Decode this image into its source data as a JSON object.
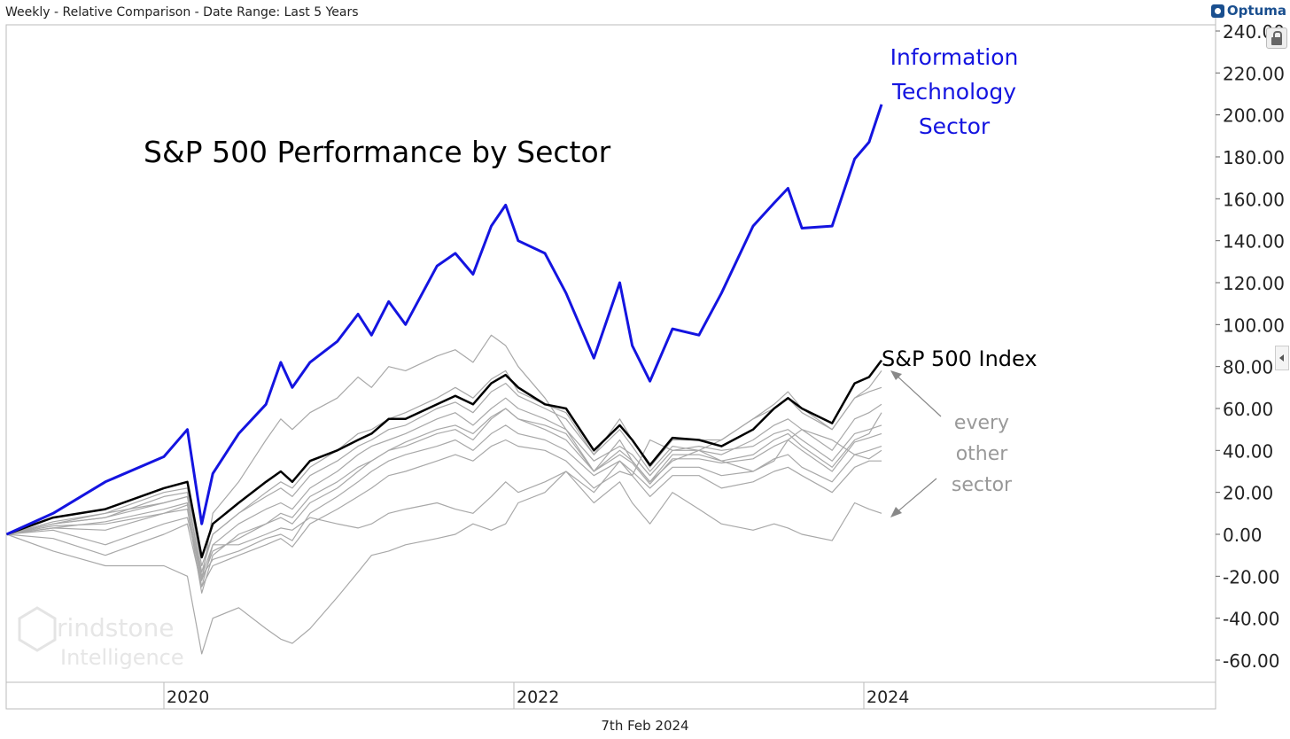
{
  "header": {
    "title": "Weekly - Relative Comparison - Date Range: Last 5 Years",
    "logo": "Optuma"
  },
  "footer": {
    "date": "7th Feb 2024"
  },
  "watermark": "Grindstone Intelligence",
  "icons": {
    "lock": "lock-icon",
    "collapse": "chevron-left-icon"
  },
  "chart_data": {
    "type": "line",
    "title": "S&P 500 Performance by Sector",
    "annotations": {
      "it": [
        "Information",
        "Technology",
        "Sector"
      ],
      "sp": "S&P 500 Index",
      "other": [
        "every",
        "other",
        "sector"
      ]
    },
    "xlabel": "",
    "ylabel": "",
    "x_ticks": [
      "2020",
      "2022",
      "2024"
    ],
    "y_ticks": [
      "240.00",
      "220.00",
      "200.00",
      "180.00",
      "160.00",
      "140.00",
      "120.00",
      "100.00",
      "80.00",
      "60.00",
      "40.00",
      "20.00",
      "0.00",
      "-20.00",
      "-40.00",
      "-60.00"
    ],
    "ylim": [
      -70,
      245
    ],
    "xlim": [
      "2019-02-07",
      "2024-02-07"
    ],
    "grid": false,
    "colors": {
      "it": "#1414e0",
      "sp": "#000000",
      "other": "#a8a8a8"
    },
    "dates": [
      "2019-02-07",
      "2019-05-15",
      "2019-09-01",
      "2020-01-01",
      "2020-02-19",
      "2020-03-20",
      "2020-04-12",
      "2020-06-05",
      "2020-08-01",
      "2020-09-01",
      "2020-09-25",
      "2020-11-01",
      "2020-12-28",
      "2021-02-10",
      "2021-03-10",
      "2021-04-15",
      "2021-05-20",
      "2021-07-25",
      "2021-09-01",
      "2021-10-08",
      "2021-11-15",
      "2021-12-15",
      "2022-01-10",
      "2022-03-07",
      "2022-04-20",
      "2022-06-17",
      "2022-08-10",
      "2022-09-05",
      "2022-10-12",
      "2022-11-28",
      "2023-01-22",
      "2023-03-10",
      "2023-05-15",
      "2023-06-28",
      "2023-07-27",
      "2023-08-25",
      "2023-10-27",
      "2023-12-13",
      "2024-01-12",
      "2024-02-07"
    ],
    "series": [
      {
        "name": "Information Technology Sector",
        "role": "it",
        "values": [
          0,
          10,
          25,
          37,
          50,
          5,
          29,
          48,
          62,
          82,
          70,
          82,
          92,
          105,
          95,
          111,
          100,
          128,
          134,
          124,
          147,
          157,
          140,
          134,
          115,
          84,
          120,
          90,
          73,
          98,
          95,
          115,
          147,
          158,
          165,
          146,
          147,
          179,
          187,
          205
        ]
      },
      {
        "name": "S&P 500 Index",
        "role": "sp",
        "values": [
          0,
          8,
          12,
          22,
          25,
          -11,
          5,
          15,
          25,
          30,
          25,
          35,
          40,
          45,
          48,
          55,
          55,
          62,
          66,
          62,
          72,
          76,
          70,
          62,
          60,
          40,
          52,
          45,
          33,
          46,
          45,
          42,
          50,
          60,
          65,
          60,
          53,
          72,
          75,
          83
        ]
      },
      {
        "role": "other",
        "values": [
          0,
          -8,
          -15,
          -15,
          -20,
          -57,
          -40,
          -35,
          -45,
          -50,
          -52,
          -45,
          -30,
          -18,
          -10,
          -8,
          -5,
          -2,
          0,
          5,
          2,
          5,
          15,
          20,
          30,
          20,
          35,
          28,
          45,
          40,
          40,
          35,
          30,
          35,
          45,
          50,
          45,
          38,
          36,
          40
        ]
      },
      {
        "role": "other",
        "values": [
          0,
          5,
          10,
          15,
          18,
          -20,
          -5,
          -5,
          0,
          3,
          2,
          8,
          5,
          3,
          5,
          10,
          12,
          15,
          12,
          10,
          18,
          25,
          20,
          25,
          30,
          15,
          25,
          15,
          5,
          20,
          12,
          5,
          2,
          5,
          3,
          0,
          -3,
          15,
          12,
          10
        ]
      },
      {
        "role": "other",
        "values": [
          0,
          5,
          8,
          18,
          20,
          -22,
          10,
          25,
          45,
          55,
          50,
          58,
          65,
          75,
          70,
          80,
          78,
          85,
          88,
          82,
          95,
          90,
          80,
          65,
          50,
          30,
          45,
          35,
          25,
          35,
          40,
          45,
          55,
          62,
          68,
          60,
          50,
          65,
          70,
          78
        ]
      },
      {
        "role": "other",
        "values": [
          0,
          6,
          10,
          20,
          22,
          -15,
          0,
          10,
          18,
          22,
          18,
          28,
          35,
          42,
          45,
          50,
          52,
          60,
          63,
          58,
          68,
          72,
          66,
          60,
          55,
          38,
          50,
          42,
          30,
          42,
          40,
          38,
          45,
          52,
          55,
          50,
          40,
          55,
          58,
          62
        ]
      },
      {
        "role": "other",
        "values": [
          0,
          3,
          6,
          12,
          15,
          -25,
          -5,
          5,
          12,
          15,
          12,
          22,
          30,
          38,
          42,
          45,
          48,
          55,
          58,
          52,
          60,
          65,
          60,
          55,
          50,
          35,
          42,
          38,
          28,
          40,
          42,
          40,
          42,
          48,
          50,
          45,
          35,
          48,
          50,
          52
        ]
      },
      {
        "role": "other",
        "values": [
          0,
          4,
          5,
          10,
          12,
          -28,
          -10,
          0,
          5,
          8,
          5,
          15,
          22,
          30,
          35,
          40,
          42,
          48,
          50,
          45,
          55,
          60,
          55,
          52,
          48,
          30,
          40,
          35,
          25,
          38,
          38,
          35,
          38,
          45,
          48,
          42,
          32,
          45,
          48,
          58
        ]
      },
      {
        "role": "other",
        "values": [
          0,
          2,
          -5,
          5,
          8,
          -20,
          -12,
          -8,
          -2,
          0,
          -3,
          10,
          18,
          25,
          30,
          35,
          38,
          42,
          45,
          40,
          48,
          52,
          48,
          45,
          40,
          28,
          35,
          30,
          22,
          32,
          32,
          28,
          30,
          36,
          38,
          32,
          25,
          38,
          40,
          42
        ]
      },
      {
        "role": "other",
        "values": [
          0,
          -2,
          -10,
          0,
          5,
          -25,
          -15,
          -10,
          -5,
          -2,
          -6,
          5,
          12,
          18,
          22,
          28,
          30,
          35,
          38,
          35,
          42,
          45,
          42,
          40,
          35,
          22,
          30,
          28,
          18,
          28,
          28,
          22,
          25,
          30,
          32,
          28,
          20,
          32,
          35,
          35
        ]
      },
      {
        "role": "other",
        "values": [
          0,
          5,
          8,
          15,
          18,
          -18,
          0,
          10,
          20,
          25,
          22,
          32,
          40,
          48,
          50,
          55,
          58,
          65,
          70,
          65,
          74,
          78,
          68,
          62,
          58,
          38,
          55,
          45,
          32,
          45,
          45,
          45,
          55,
          60,
          65,
          58,
          50,
          65,
          68,
          70
        ]
      },
      {
        "role": "other",
        "values": [
          0,
          3,
          2,
          10,
          14,
          -22,
          -8,
          -2,
          5,
          10,
          8,
          18,
          25,
          32,
          35,
          40,
          44,
          50,
          52,
          48,
          56,
          60,
          55,
          50,
          45,
          30,
          38,
          34,
          24,
          36,
          36,
          34,
          36,
          42,
          45,
          40,
          30,
          44,
          46,
          48
        ]
      }
    ]
  }
}
